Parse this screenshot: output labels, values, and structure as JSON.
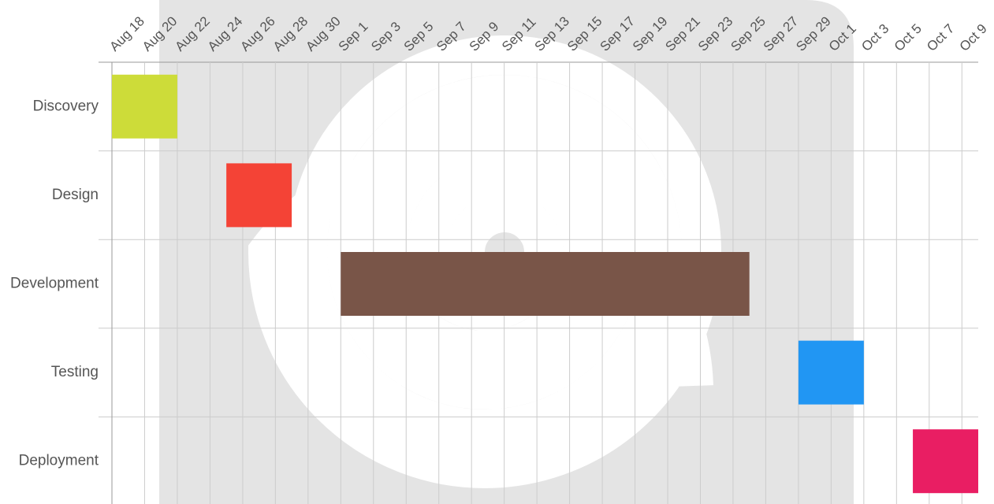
{
  "chart_data": {
    "type": "gantt",
    "xlim": [
      "Aug 18",
      "Oct 10"
    ],
    "xticks": [
      "Aug 18",
      "Aug 20",
      "Aug 22",
      "Aug 24",
      "Aug 26",
      "Aug 28",
      "Aug 30",
      "Sep 1",
      "Sep 3",
      "Sep 5",
      "Sep 7",
      "Sep 9",
      "Sep 11",
      "Sep 13",
      "Sep 15",
      "Sep 17",
      "Sep 19",
      "Sep 21",
      "Sep 23",
      "Sep 25",
      "Sep 27",
      "Sep 29",
      "Oct 1",
      "Oct 3",
      "Oct 5",
      "Oct 7",
      "Oct 9"
    ],
    "grid": true,
    "tasks": [
      {
        "name": "Discovery",
        "start": "Aug 18",
        "end": "Aug 22",
        "color": "#cddc39"
      },
      {
        "name": "Design",
        "start": "Aug 25",
        "end": "Aug 29",
        "color": "#f44336"
      },
      {
        "name": "Development",
        "start": "Sep 1",
        "end": "Sep 26",
        "color": "#795548"
      },
      {
        "name": "Testing",
        "start": "Sep 29",
        "end": "Oct 3",
        "color": "#2196f3"
      },
      {
        "name": "Deployment",
        "start": "Oct 6",
        "end": "Oct 10",
        "color": "#e91e63"
      }
    ]
  }
}
